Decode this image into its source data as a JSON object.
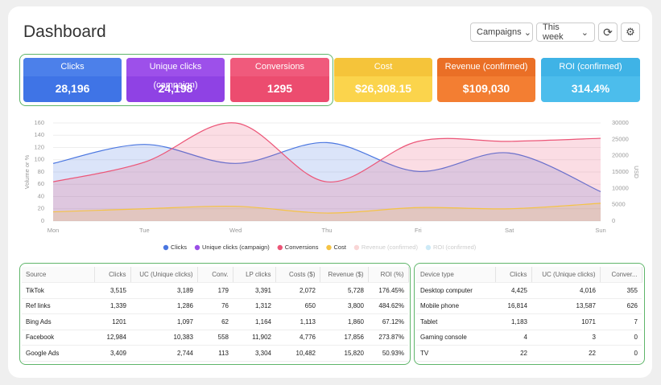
{
  "header": {
    "title": "Dashboard",
    "controls": [
      "Campaigns",
      "This week"
    ]
  },
  "kpis": [
    {
      "label": "Clicks",
      "value": "28,196",
      "head": "#4c80ea",
      "body": "#3f74e6"
    },
    {
      "label": "Unique clicks (campaign)",
      "value": "24,198",
      "head": "#9d50ea",
      "body": "#8f42e4"
    },
    {
      "label": "Conversions",
      "value": "1295",
      "head": "#f05a7c",
      "body": "#ec4c6f"
    },
    {
      "label": "Cost",
      "value": "$26,308.15",
      "head": "#f5c43a",
      "body": "#fbd44c"
    },
    {
      "label": "Revenue (confirmed)",
      "value": "$109,030",
      "head": "#ea6f26",
      "body": "#f37e32"
    },
    {
      "label": "ROI (confirmed)",
      "value": "314.4%",
      "head": "#3fb3e6",
      "body": "#4cbdec"
    }
  ],
  "chart_data": {
    "type": "area",
    "categories": [
      "Mon",
      "Tue",
      "Wed",
      "Thu",
      "Fri",
      "Sat",
      "Sun"
    ],
    "ylabel": "Volume or %",
    "y2label": "USD",
    "ylim": [
      0,
      160
    ],
    "yticks": [
      0,
      20,
      40,
      60,
      80,
      100,
      120,
      140,
      160
    ],
    "y2lim": [
      0,
      30000
    ],
    "y2ticks": [
      0,
      5000,
      10000,
      15000,
      20000,
      25000,
      30000
    ],
    "series": [
      {
        "name": "Clicks",
        "color": "#4a76e0",
        "values": [
          94,
          125,
          94,
          128,
          81,
          111,
          48
        ]
      },
      {
        "name": "Unique clicks (campaign)",
        "color": "#9a4fe6"
      },
      {
        "name": "Conversions",
        "color": "#ec5577",
        "values": [
          64,
          96,
          160,
          64,
          130,
          130,
          135
        ]
      },
      {
        "name": "Cost",
        "color": "#f5c344",
        "values": [
          15,
          20,
          24,
          13,
          22,
          20,
          29
        ]
      },
      {
        "name": "Revenue (confirmed)",
        "color": "#f9d6d6",
        "hidden": true
      },
      {
        "name": "ROI (confirmed)",
        "color": "#cdeaf7",
        "hidden": true
      }
    ]
  },
  "tables": [
    {
      "columns": [
        "Source",
        "Clicks",
        "UC (Unique clicks)",
        "Conv.",
        "LP clicks",
        "Costs ($)",
        "Revenue ($)",
        "ROI (%)"
      ],
      "rows": [
        [
          "TikTok",
          "3,515",
          "3,189",
          "179",
          "3,391",
          "2,072",
          "5,728",
          "176.45%"
        ],
        [
          "Ref links",
          "1,339",
          "1,286",
          "76",
          "1,312",
          "650",
          "3,800",
          "484.62%"
        ],
        [
          "Bing Ads",
          "1201",
          "1,097",
          "62",
          "1,164",
          "1,113",
          "1,860",
          "67.12%"
        ],
        [
          "Facebook",
          "12,984",
          "10,383",
          "558",
          "11,902",
          "4,776",
          "17,856",
          "273.87%"
        ],
        [
          "Google Ads",
          "3,409",
          "2,744",
          "113",
          "3,304",
          "10,482",
          "15,820",
          "50.93%"
        ]
      ]
    },
    {
      "columns": [
        "Device type",
        "Clicks",
        "UC (Unique clicks)",
        "Conver..."
      ],
      "rows": [
        [
          "Desktop computer",
          "4,425",
          "4,016",
          "355"
        ],
        [
          "Mobile phone",
          "16,814",
          "13,587",
          "626"
        ],
        [
          "Tablet",
          "1,183",
          "1071",
          "7"
        ],
        [
          "Gaming console",
          "4",
          "3",
          "0"
        ],
        [
          "TV",
          "22",
          "22",
          "0"
        ]
      ]
    }
  ]
}
